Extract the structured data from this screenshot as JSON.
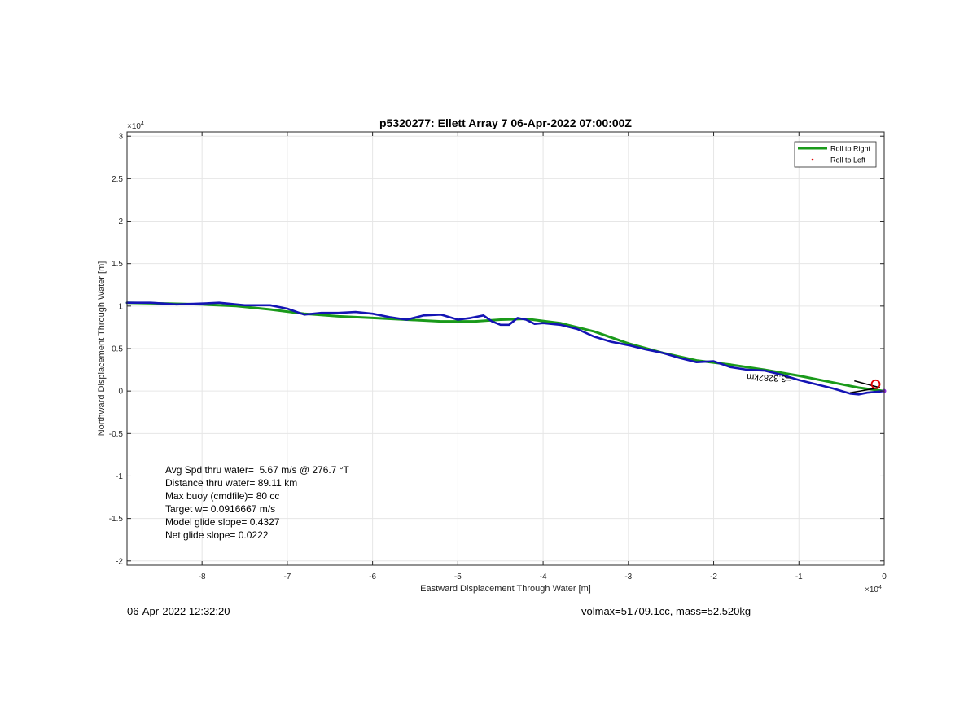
{
  "footer": {
    "timestamp": "06-Apr-2022 12:32:20",
    "params": "volmax=51709.1cc, mass=52.520kg"
  },
  "colors": {
    "roll_right": "#1a9a1a",
    "roll_left": "#e00000",
    "track": "#1414b4",
    "grid": "#e6e6e6",
    "axis": "#262626"
  },
  "chart_data": {
    "type": "line",
    "title": "p5320277: Ellett Array 7 06-Apr-2022 07:00:00Z",
    "xlabel": "Eastward Displacement Through Water [m]",
    "ylabel": "Northward Displacement Through Water [m]",
    "x_exponent_label": "×10",
    "x_exponent_power": "4",
    "y_exponent_label": "×10",
    "y_exponent_power": "4",
    "xlim": [
      -8.88,
      0
    ],
    "ylim": [
      -2.05,
      3.05
    ],
    "xticks": [
      -8,
      -7,
      -6,
      -5,
      -4,
      -3,
      -2,
      -1,
      0
    ],
    "yticks": [
      -2,
      -1.5,
      -1,
      -0.5,
      0,
      0.5,
      1,
      1.5,
      2,
      2.5,
      3
    ],
    "xtick_labels": [
      "-8",
      "-7",
      "-6",
      "-5",
      "-4",
      "-3",
      "-2",
      "-1",
      "0"
    ],
    "ytick_labels": [
      "-2",
      "-1.5",
      "-1",
      "-0.5",
      "0",
      "0.5",
      "1",
      "1.5",
      "2",
      "2.5",
      "3"
    ],
    "grid": true,
    "legend": {
      "placement": "top-right",
      "entries": [
        "Roll to Right",
        "Roll to Left"
      ]
    },
    "series": [
      {
        "name": "Roll to Right",
        "style": "line",
        "x": [
          -8.88,
          -8.4,
          -8.0,
          -7.6,
          -7.2,
          -6.8,
          -6.4,
          -6.0,
          -5.6,
          -5.2,
          -4.8,
          -4.5,
          -4.2,
          -3.8,
          -3.4,
          -3.0,
          -2.6,
          -2.2,
          -1.8,
          -1.4,
          -1.0,
          -0.6,
          -0.3,
          0.0
        ],
        "y": [
          1.04,
          1.03,
          1.02,
          1.0,
          0.96,
          0.91,
          0.88,
          0.86,
          0.84,
          0.82,
          0.82,
          0.84,
          0.85,
          0.8,
          0.7,
          0.56,
          0.45,
          0.36,
          0.31,
          0.25,
          0.18,
          0.1,
          0.04,
          0.0
        ]
      },
      {
        "name": "Track",
        "style": "line",
        "x": [
          -8.88,
          -8.6,
          -8.3,
          -8.0,
          -7.8,
          -7.5,
          -7.2,
          -7.0,
          -6.8,
          -6.6,
          -6.4,
          -6.2,
          -6.0,
          -5.8,
          -5.6,
          -5.4,
          -5.2,
          -5.0,
          -4.85,
          -4.7,
          -4.6,
          -4.5,
          -4.4,
          -4.3,
          -4.2,
          -4.1,
          -4.0,
          -3.8,
          -3.6,
          -3.4,
          -3.2,
          -3.0,
          -2.8,
          -2.6,
          -2.4,
          -2.2,
          -2.0,
          -1.8,
          -1.6,
          -1.4,
          -1.2,
          -1.0,
          -0.8,
          -0.6,
          -0.4,
          -0.3,
          -0.2,
          -0.1,
          0.0
        ],
        "y": [
          1.04,
          1.04,
          1.02,
          1.03,
          1.04,
          1.01,
          1.01,
          0.97,
          0.9,
          0.92,
          0.92,
          0.93,
          0.91,
          0.87,
          0.84,
          0.89,
          0.9,
          0.84,
          0.86,
          0.89,
          0.82,
          0.78,
          0.78,
          0.86,
          0.84,
          0.79,
          0.8,
          0.78,
          0.73,
          0.64,
          0.58,
          0.54,
          0.49,
          0.45,
          0.39,
          0.34,
          0.35,
          0.28,
          0.25,
          0.24,
          0.19,
          0.13,
          0.08,
          0.03,
          -0.03,
          -0.04,
          -0.02,
          -0.01,
          0.0
        ]
      }
    ],
    "roll_left_marker": {
      "x": -0.1,
      "y": 0.08
    },
    "rotated_annotation": "=3.3282km",
    "info_lines": [
      "Avg Spd thru water=  5.67 m/s @ 276.7 °T",
      "Distance thru water= 89.11 km",
      "Max buoy (cmdfile)= 80 cc",
      "Target w= 0.0916667 m/s",
      "Model glide slope= 0.4327",
      "Net glide slope= 0.0222"
    ]
  }
}
